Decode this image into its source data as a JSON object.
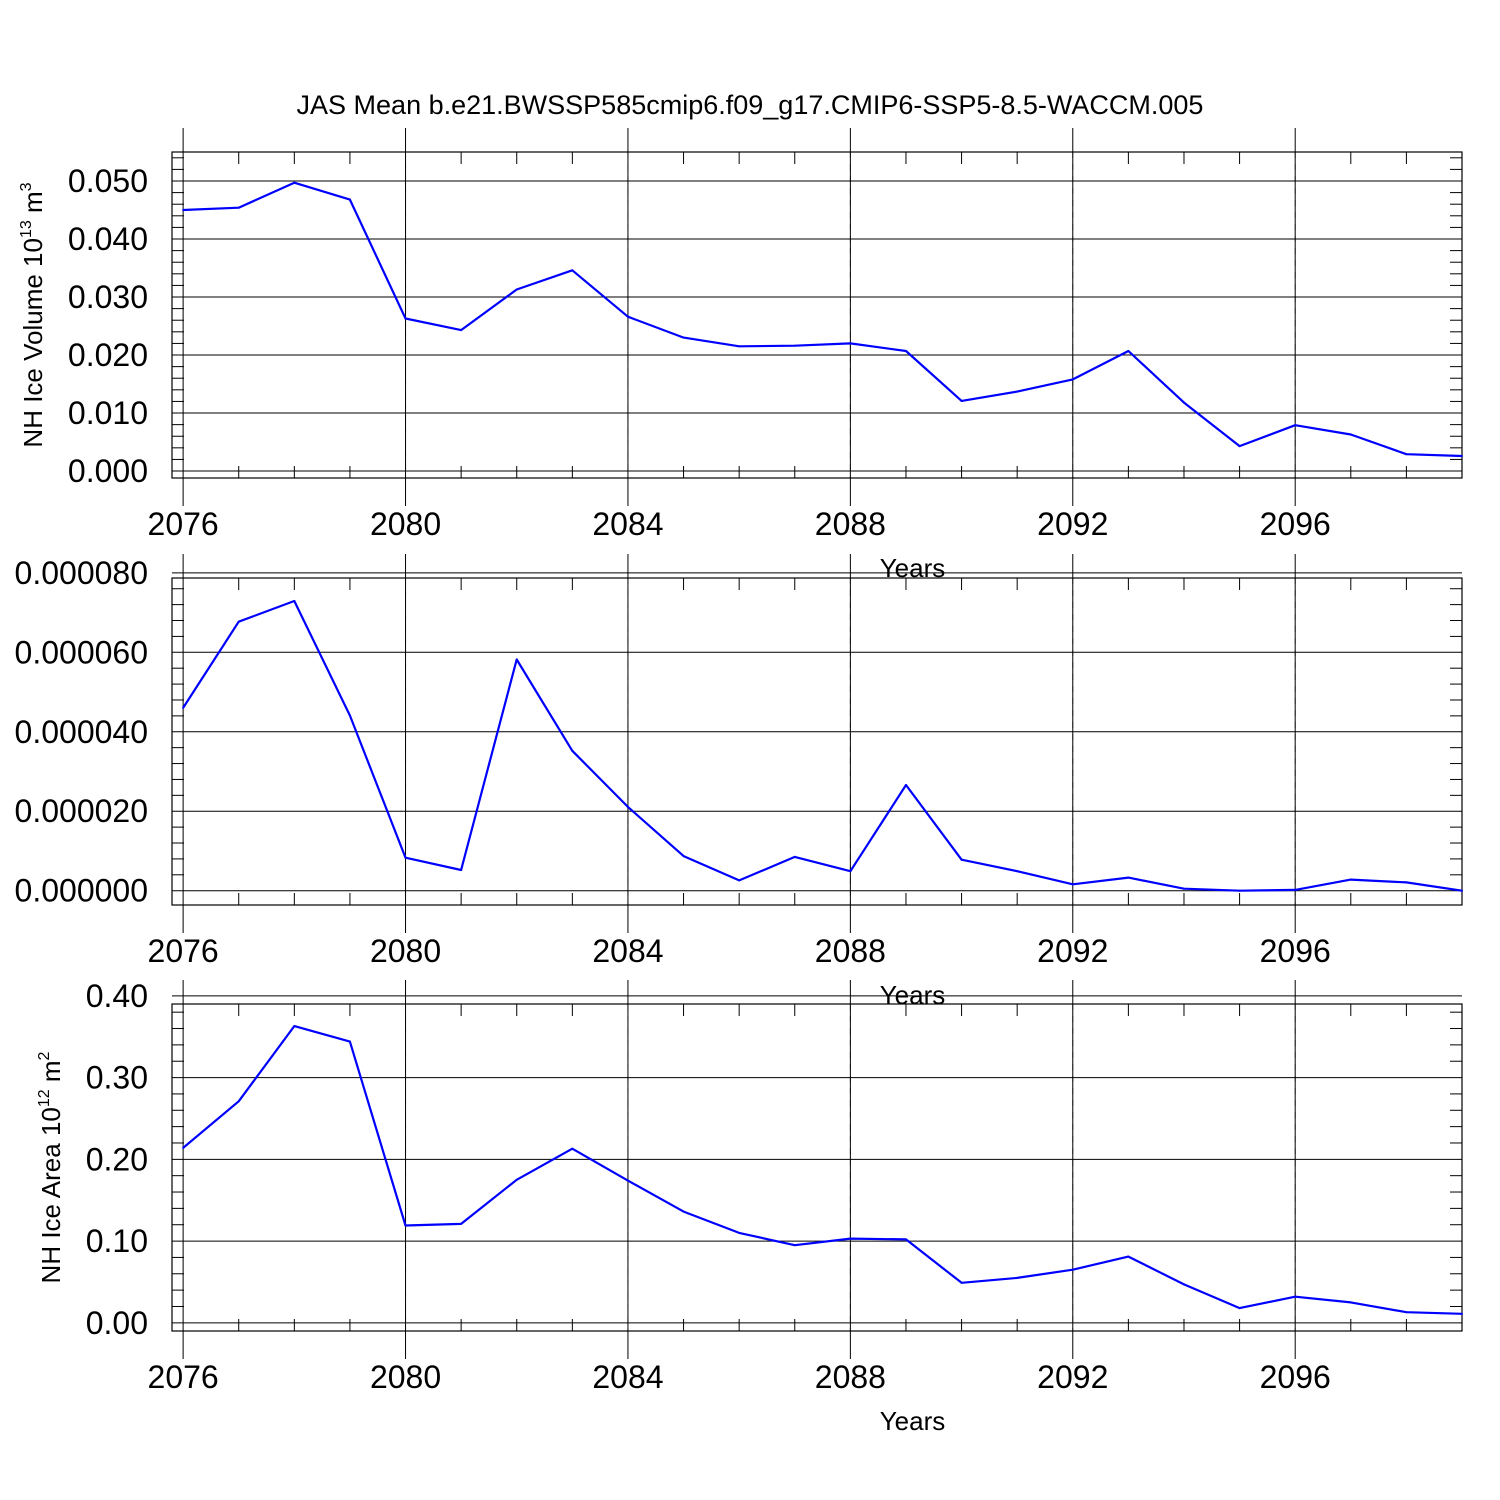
{
  "title": "JAS Mean b.e21.BWSSP585cmip6.f09_g17.CMIP6-SSP5-8.5-WACCM.005",
  "colors": {
    "series": "#0000ff",
    "axis": "#000000",
    "grid": "#8a8a8a"
  },
  "chart_data": [
    {
      "type": "line",
      "ylabel": "NH Ice Volume 10",
      "ylabel_exp": "13",
      "ylabel_unit": " m",
      "ylabel_unit_exp": "3",
      "xlabel": "Years",
      "x": [
        2076,
        2077,
        2078,
        2079,
        2080,
        2081,
        2082,
        2083,
        2084,
        2085,
        2086,
        2087,
        2088,
        2089,
        2090,
        2091,
        2092,
        2093,
        2094,
        2095,
        2096,
        2097,
        2098,
        2099
      ],
      "values": [
        0.045,
        0.0454,
        0.0497,
        0.0468,
        0.0263,
        0.0243,
        0.0313,
        0.0346,
        0.0266,
        0.023,
        0.0215,
        0.0216,
        0.022,
        0.0207,
        0.0121,
        0.0137,
        0.0158,
        0.0207,
        0.0118,
        0.0043,
        0.0079,
        0.0063,
        0.0029,
        0.0026
      ],
      "xlim": [
        2075.8,
        2099
      ],
      "ylim": [
        -0.0012,
        0.055
      ],
      "xticks": [
        2076,
        2080,
        2084,
        2088,
        2092,
        2096
      ],
      "xtick_labels": [
        "2076",
        "2080",
        "2084",
        "2088",
        "2092",
        "2096"
      ],
      "yticks": [
        0.0,
        0.01,
        0.02,
        0.03,
        0.04,
        0.05
      ],
      "ytick_labels": [
        "0.000",
        "0.010",
        "0.020",
        "0.030",
        "0.040",
        "0.050"
      ],
      "ymajor": 0.01,
      "yminor": 0.002,
      "grid": "vertical-dashed"
    },
    {
      "type": "line",
      "ylabel": "",
      "xlabel": "Years",
      "x": [
        2076,
        2077,
        2078,
        2079,
        2080,
        2081,
        2082,
        2083,
        2084,
        2085,
        2086,
        2087,
        2088,
        2089,
        2090,
        2091,
        2092,
        2093,
        2094,
        2095,
        2096,
        2097,
        2098,
        2099
      ],
      "values": [
        4.6e-05,
        6.77e-05,
        7.29e-05,
        4.41e-05,
        8.3e-06,
        5.2e-06,
        5.82e-05,
        3.52e-05,
        2.11e-05,
        8.7e-06,
        2.6e-06,
        8.5e-06,
        4.9e-06,
        2.66e-05,
        7.8e-06,
        4.9e-06,
        1.6e-06,
        3.3e-06,
        5e-07,
        0.0,
        2e-07,
        2.8e-06,
        2.1e-06,
        0.0
      ],
      "xlim": [
        2075.8,
        2099
      ],
      "ylim": [
        -3.6e-06,
        7.87e-05
      ],
      "xticks": [
        2076,
        2080,
        2084,
        2088,
        2092,
        2096
      ],
      "xtick_labels": [
        "2076",
        "2080",
        "2084",
        "2088",
        "2092",
        "2096"
      ],
      "yticks": [
        0.0,
        2e-05,
        4e-05,
        6e-05,
        8e-05
      ],
      "ytick_labels": [
        "0.000000",
        "0.000020",
        "0.000040",
        "0.000060",
        "0.000080"
      ],
      "ymajor": 2e-05,
      "yminor": 4e-06,
      "grid": "vertical-dashed"
    },
    {
      "type": "line",
      "ylabel": "NH Ice Area 10",
      "ylabel_exp": "12",
      "ylabel_unit": " m",
      "ylabel_unit_exp": "2",
      "xlabel": "Years",
      "x": [
        2076,
        2077,
        2078,
        2079,
        2080,
        2081,
        2082,
        2083,
        2084,
        2085,
        2086,
        2087,
        2088,
        2089,
        2090,
        2091,
        2092,
        2093,
        2094,
        2095,
        2096,
        2097,
        2098,
        2099
      ],
      "values": [
        0.214,
        0.271,
        0.363,
        0.344,
        0.119,
        0.121,
        0.175,
        0.213,
        0.174,
        0.136,
        0.11,
        0.095,
        0.103,
        0.102,
        0.049,
        0.055,
        0.065,
        0.081,
        0.047,
        0.018,
        0.032,
        0.025,
        0.013,
        0.011
      ],
      "xlim": [
        2075.8,
        2099
      ],
      "ylim": [
        -0.01,
        0.39
      ],
      "xticks": [
        2076,
        2080,
        2084,
        2088,
        2092,
        2096
      ],
      "xtick_labels": [
        "2076",
        "2080",
        "2084",
        "2088",
        "2092",
        "2096"
      ],
      "yticks": [
        0.0,
        0.1,
        0.2,
        0.3,
        0.4
      ],
      "ytick_labels": [
        "0.00",
        "0.10",
        "0.20",
        "0.30",
        "0.40"
      ],
      "ymajor": 0.1,
      "yminor": 0.02,
      "grid": "vertical-dashed"
    }
  ]
}
